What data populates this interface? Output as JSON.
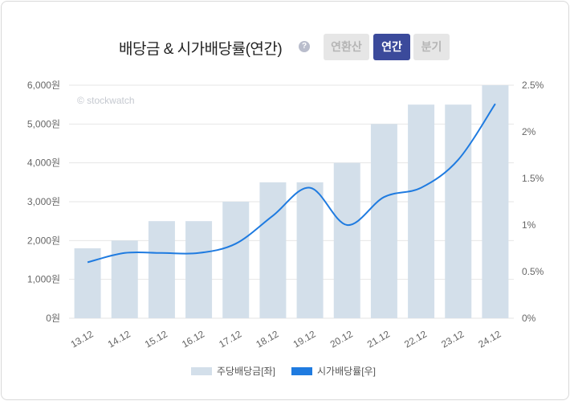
{
  "header": {
    "title": "배당금 & 시가배당률(연간)",
    "help_icon": "?",
    "buttons": [
      "연환산",
      "연간",
      "분기"
    ],
    "active_button": "연간"
  },
  "watermark": "© stockwatch",
  "colors": {
    "bar": "#d3dfea",
    "line": "#1f7be0",
    "active": "#3b4a9b"
  },
  "chart_data": {
    "type": "bar",
    "title": "배당금 & 시가배당률(연간)",
    "categories": [
      "13.12",
      "14.12",
      "15.12",
      "16.12",
      "17.12",
      "18.12",
      "19.12",
      "20.12",
      "21.12",
      "22.12",
      "23.12",
      "24.12"
    ],
    "series": [
      {
        "name": "주당배당금[좌]",
        "type": "bar",
        "axis": "left",
        "values": [
          1800,
          2000,
          2500,
          2500,
          3000,
          3500,
          3500,
          4000,
          5000,
          5500,
          5500,
          6000
        ]
      },
      {
        "name": "시가배당률[우]",
        "type": "line",
        "axis": "right",
        "values": [
          0.6,
          0.7,
          0.7,
          0.7,
          0.8,
          1.1,
          1.4,
          1.0,
          1.3,
          1.4,
          1.7,
          2.3
        ]
      }
    ],
    "y_left": {
      "ticks": [
        "0원",
        "1,000원",
        "2,000원",
        "3,000원",
        "4,000원",
        "5,000원",
        "6,000원"
      ],
      "ylim": [
        0,
        6000
      ]
    },
    "y_right": {
      "ticks": [
        "0%",
        "0.5%",
        "1%",
        "1.5%",
        "2%",
        "2.5%"
      ],
      "ylim": [
        0,
        2.5
      ]
    },
    "grid": true,
    "legend": "bottom-center"
  }
}
